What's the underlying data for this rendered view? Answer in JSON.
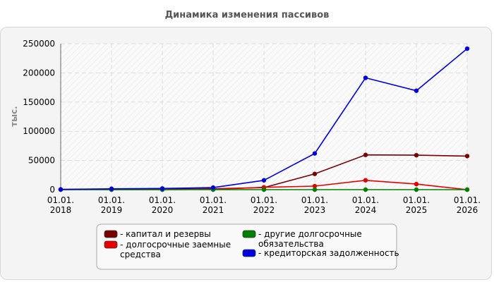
{
  "chart_data": {
    "type": "line",
    "title": "Динамика изменения пассивов",
    "ylabel": "тыс.",
    "xlabel": "",
    "categories": [
      [
        "01.01.",
        "2018"
      ],
      [
        "01.01.",
        "2019"
      ],
      [
        "01.01.",
        "2020"
      ],
      [
        "01.01.",
        "2021"
      ],
      [
        "01.01.",
        "2022"
      ],
      [
        "01.01.",
        "2023"
      ],
      [
        "01.01.",
        "2024"
      ],
      [
        "01.01.",
        "2025"
      ],
      [
        "01.01.",
        "2026"
      ]
    ],
    "ylim": [
      0,
      250000
    ],
    "yticks": [
      "0",
      "50000",
      "100000",
      "150000",
      "200000",
      "250000"
    ],
    "grid": true,
    "legend_position": "bottom",
    "series": [
      {
        "name": "- капитал и резервы",
        "color": "#7a0000",
        "values": [
          300,
          600,
          800,
          1500,
          3500,
          27000,
          59500,
          59000,
          57500
        ]
      },
      {
        "name": [
          "- долгосрочные заемные",
          "средства"
        ],
        "color": "#e80000",
        "values": [
          0,
          0,
          0,
          500,
          4000,
          6000,
          16000,
          9500,
          0
        ]
      },
      {
        "name": [
          "- другие долгосрочные",
          "обязательства"
        ],
        "color": "#008000",
        "values": [
          0,
          0,
          0,
          0,
          0,
          0,
          0,
          0,
          0
        ]
      },
      {
        "name": "- кредиторская задолженность",
        "color": "#0000e0",
        "values": [
          500,
          1500,
          2000,
          3500,
          16000,
          62000,
          191500,
          169500,
          241500
        ]
      }
    ]
  }
}
